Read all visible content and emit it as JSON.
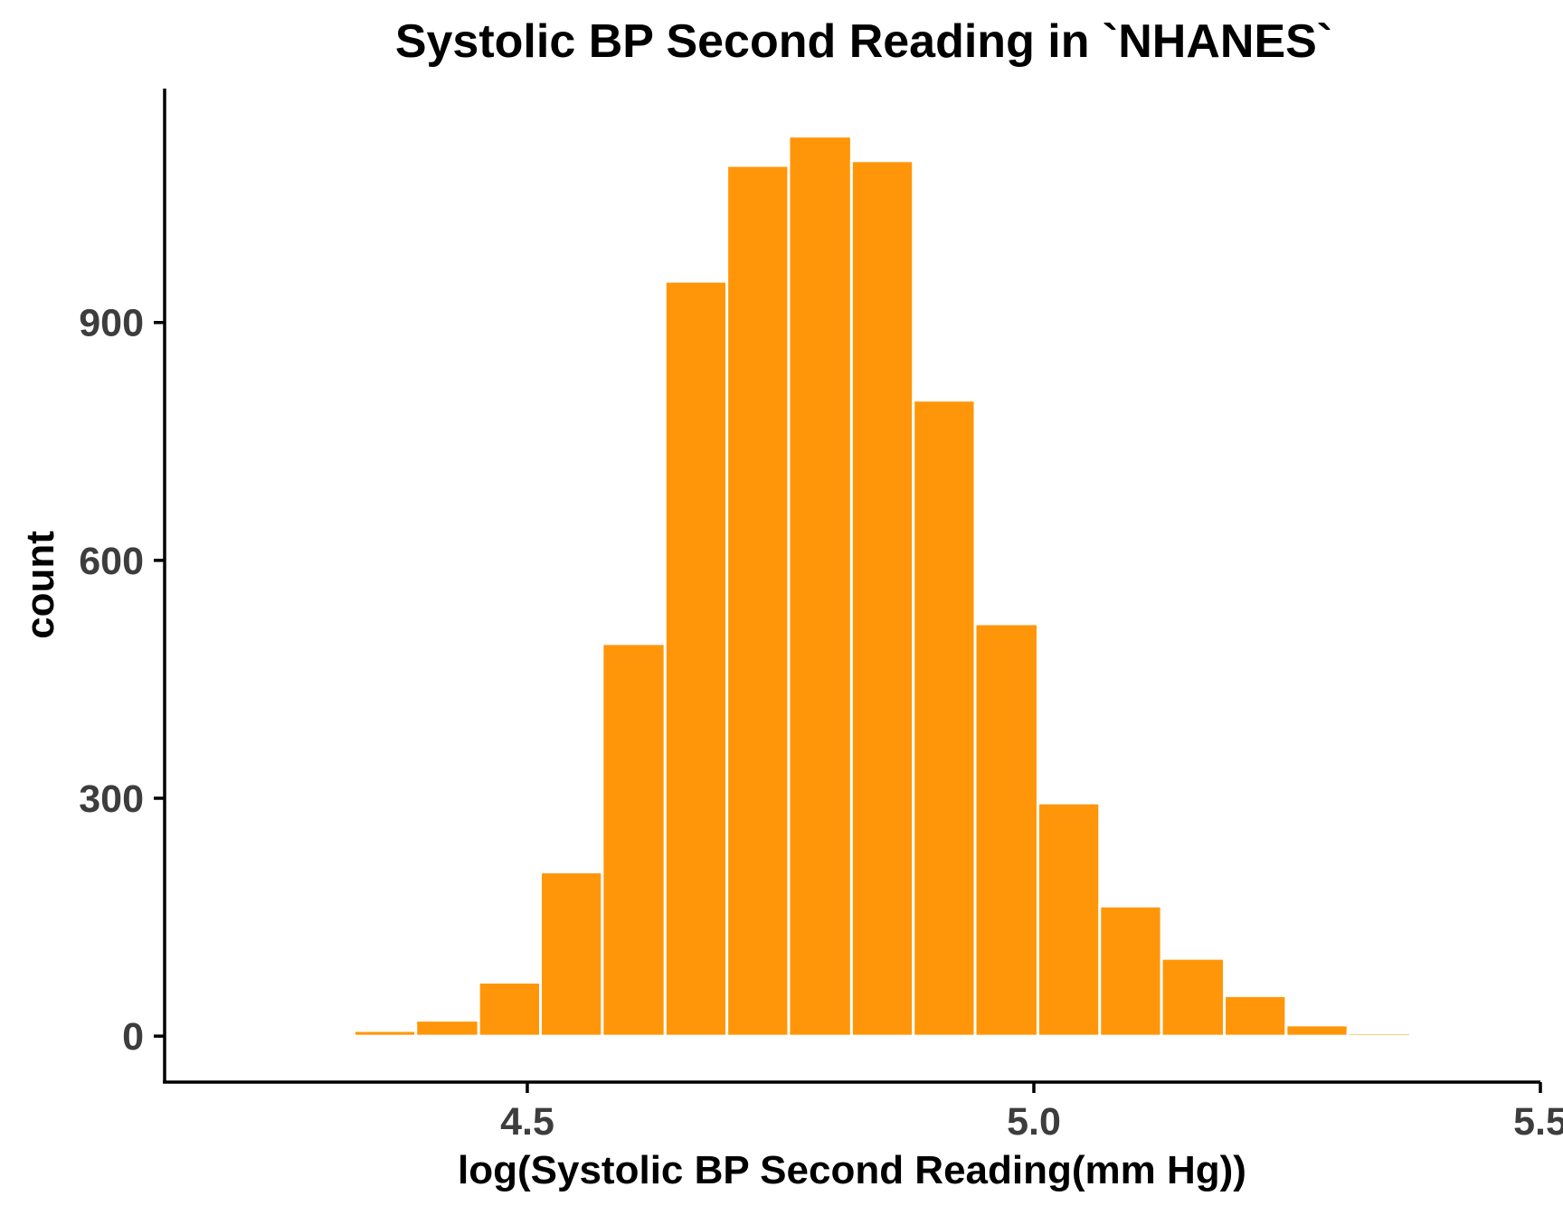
{
  "chart_data": {
    "type": "bar",
    "title": "Systolic BP Second Reading in `NHANES`",
    "xlabel": "log(Systolic BP Second Reading(mm Hg))",
    "ylabel": "count",
    "bar_color": "#FF9609",
    "bar_outline": "#FFFFFF",
    "grid": false,
    "xlim": [
      4.142,
      5.5
    ],
    "ylim": [
      -58,
      1195
    ],
    "x_ticks": [
      {
        "value": 4.5,
        "label": "4.5"
      },
      {
        "value": 5.0,
        "label": "5.0"
      },
      {
        "value": 5.5,
        "label": "5.5"
      }
    ],
    "y_ticks": [
      {
        "value": 0,
        "label": "0"
      },
      {
        "value": 300,
        "label": "300"
      },
      {
        "value": 600,
        "label": "600"
      },
      {
        "value": 900,
        "label": "900"
      }
    ],
    "bins": [
      {
        "x0": 4.268,
        "x1": 4.329,
        "count": 2
      },
      {
        "x0": 4.329,
        "x1": 4.39,
        "count": 7
      },
      {
        "x0": 4.39,
        "x1": 4.452,
        "count": 20
      },
      {
        "x0": 4.452,
        "x1": 4.513,
        "count": 68
      },
      {
        "x0": 4.513,
        "x1": 4.574,
        "count": 207
      },
      {
        "x0": 4.574,
        "x1": 4.636,
        "count": 495
      },
      {
        "x0": 4.636,
        "x1": 4.697,
        "count": 952
      },
      {
        "x0": 4.697,
        "x1": 4.758,
        "count": 1098
      },
      {
        "x0": 4.758,
        "x1": 4.82,
        "count": 1135
      },
      {
        "x0": 4.82,
        "x1": 4.881,
        "count": 1104
      },
      {
        "x0": 4.881,
        "x1": 4.942,
        "count": 802
      },
      {
        "x0": 4.942,
        "x1": 5.004,
        "count": 520
      },
      {
        "x0": 5.004,
        "x1": 5.065,
        "count": 294
      },
      {
        "x0": 5.065,
        "x1": 5.126,
        "count": 164
      },
      {
        "x0": 5.126,
        "x1": 5.188,
        "count": 98
      },
      {
        "x0": 5.188,
        "x1": 5.249,
        "count": 51
      },
      {
        "x0": 5.249,
        "x1": 5.31,
        "count": 14
      },
      {
        "x0": 5.31,
        "x1": 5.372,
        "count": 4
      },
      {
        "x0": 5.372,
        "x1": 5.433,
        "count": 1
      }
    ]
  }
}
